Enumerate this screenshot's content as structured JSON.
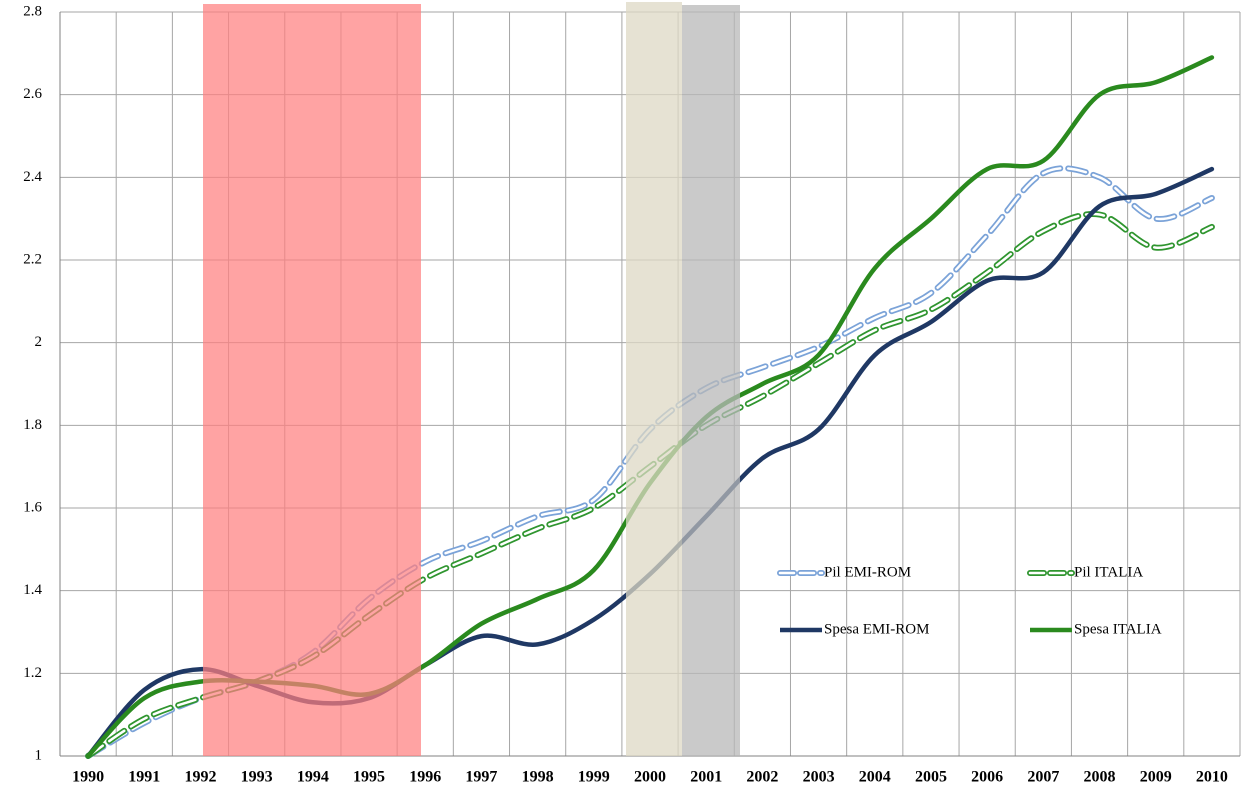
{
  "chart_data": {
    "type": "line",
    "categories": [
      "1990",
      "1991",
      "1992",
      "1993",
      "1994",
      "1995",
      "1996",
      "1997",
      "1998",
      "1999",
      "2000",
      "2001",
      "2002",
      "2003",
      "2004",
      "2005",
      "2006",
      "2007",
      "2008",
      "2009",
      "2010"
    ],
    "series": [
      {
        "name": "Pil EMI-ROM",
        "color": "#7ba3d8",
        "dashed": true,
        "values": [
          1.0,
          1.08,
          1.14,
          1.18,
          1.25,
          1.38,
          1.47,
          1.52,
          1.58,
          1.62,
          1.79,
          1.89,
          1.94,
          1.99,
          2.06,
          2.12,
          2.26,
          2.41,
          2.4,
          2.3,
          2.35
        ]
      },
      {
        "name": "Pil ITALIA",
        "color": "#2f952f",
        "dashed": true,
        "values": [
          1.0,
          1.09,
          1.14,
          1.18,
          1.24,
          1.34,
          1.43,
          1.49,
          1.55,
          1.6,
          1.7,
          1.8,
          1.87,
          1.95,
          2.03,
          2.08,
          2.17,
          2.27,
          2.31,
          2.23,
          2.28
        ]
      },
      {
        "name": "Spesa EMI-ROM",
        "color": "#1f3864",
        "dashed": false,
        "values": [
          1.0,
          1.16,
          1.21,
          1.17,
          1.13,
          1.14,
          1.22,
          1.29,
          1.27,
          1.33,
          1.44,
          1.58,
          1.72,
          1.79,
          1.97,
          2.05,
          2.15,
          2.17,
          2.33,
          2.36,
          2.42
        ]
      },
      {
        "name": "Spesa ITALIA",
        "color": "#2a8a1e",
        "dashed": false,
        "values": [
          1.0,
          1.14,
          1.18,
          1.18,
          1.17,
          1.15,
          1.22,
          1.32,
          1.38,
          1.45,
          1.66,
          1.82,
          1.9,
          1.97,
          2.18,
          2.3,
          2.42,
          2.44,
          2.6,
          2.63,
          2.69
        ]
      }
    ],
    "ylim": [
      1,
      2.8
    ],
    "yticks": [
      1,
      1.2,
      1.4,
      1.6,
      1.8,
      2,
      2.2,
      2.4,
      2.6,
      2.8
    ],
    "grid": true,
    "legend": "lower-right"
  }
}
